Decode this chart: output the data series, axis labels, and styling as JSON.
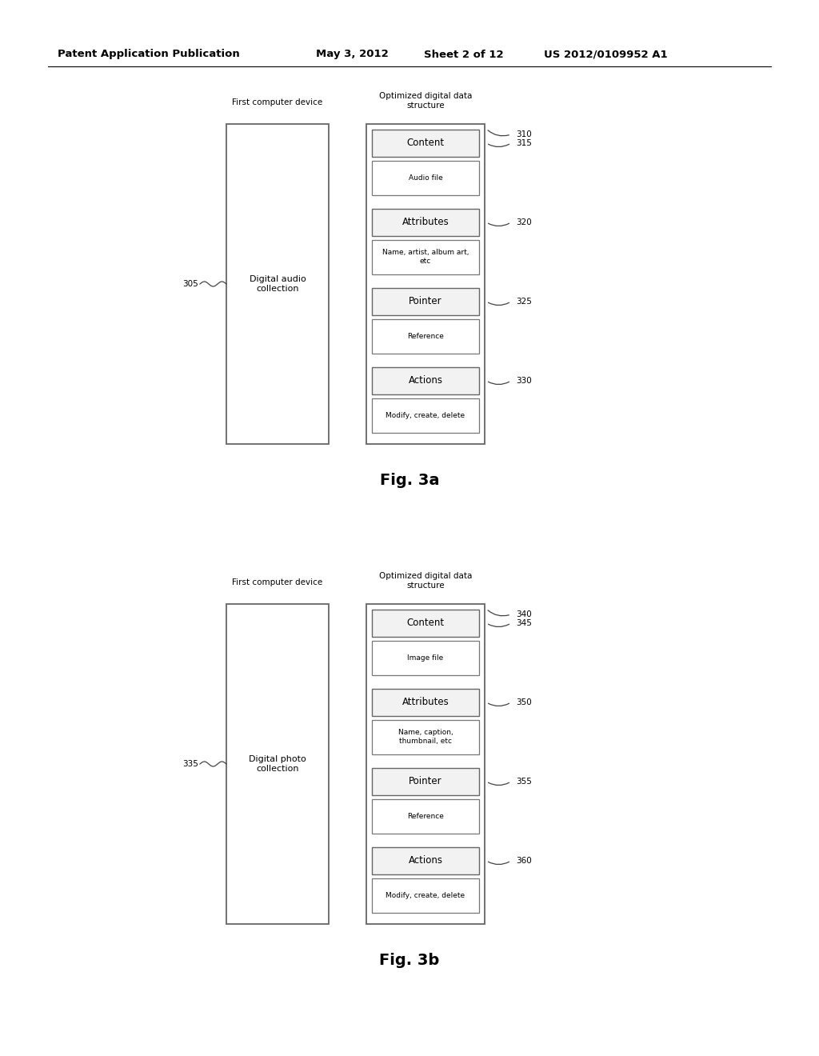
{
  "bg_color": "#ffffff",
  "header_text": "Patent Application Publication",
  "header_date": "May 3, 2012",
  "header_sheet": "Sheet 2 of 12",
  "header_patent": "US 2012/0109952 A1",
  "fig_a": {
    "title_left": "First computer device",
    "title_right_line1": "Optimized digital data",
    "title_right_line2": "structure",
    "left_box_label": "Digital audio\ncollection",
    "left_label_num": "305",
    "right_label_num": "310",
    "sections": [
      {
        "header": "Content",
        "sub": "Audio file",
        "label": "315"
      },
      {
        "header": "Attributes",
        "sub": "Name, artist, album art,\netc",
        "label": "320"
      },
      {
        "header": "Pointer",
        "sub": "Reference",
        "label": "325"
      },
      {
        "header": "Actions",
        "sub": "Modify, create, delete",
        "label": "330"
      }
    ],
    "fig_label": "Fig. 3a"
  },
  "fig_b": {
    "title_left": "First computer device",
    "title_right_line1": "Optimized digital data",
    "title_right_line2": "structure",
    "left_box_label": "Digital photo\ncollection",
    "left_label_num": "335",
    "right_label_num": "340",
    "sections": [
      {
        "header": "Content",
        "sub": "Image file",
        "label": "345"
      },
      {
        "header": "Attributes",
        "sub": "Name, caption,\nthumbnail, etc",
        "label": "350"
      },
      {
        "header": "Pointer",
        "sub": "Reference",
        "label": "355"
      },
      {
        "header": "Actions",
        "sub": "Modify, create, delete",
        "label": "360"
      }
    ],
    "fig_label": "Fig. 3b"
  }
}
